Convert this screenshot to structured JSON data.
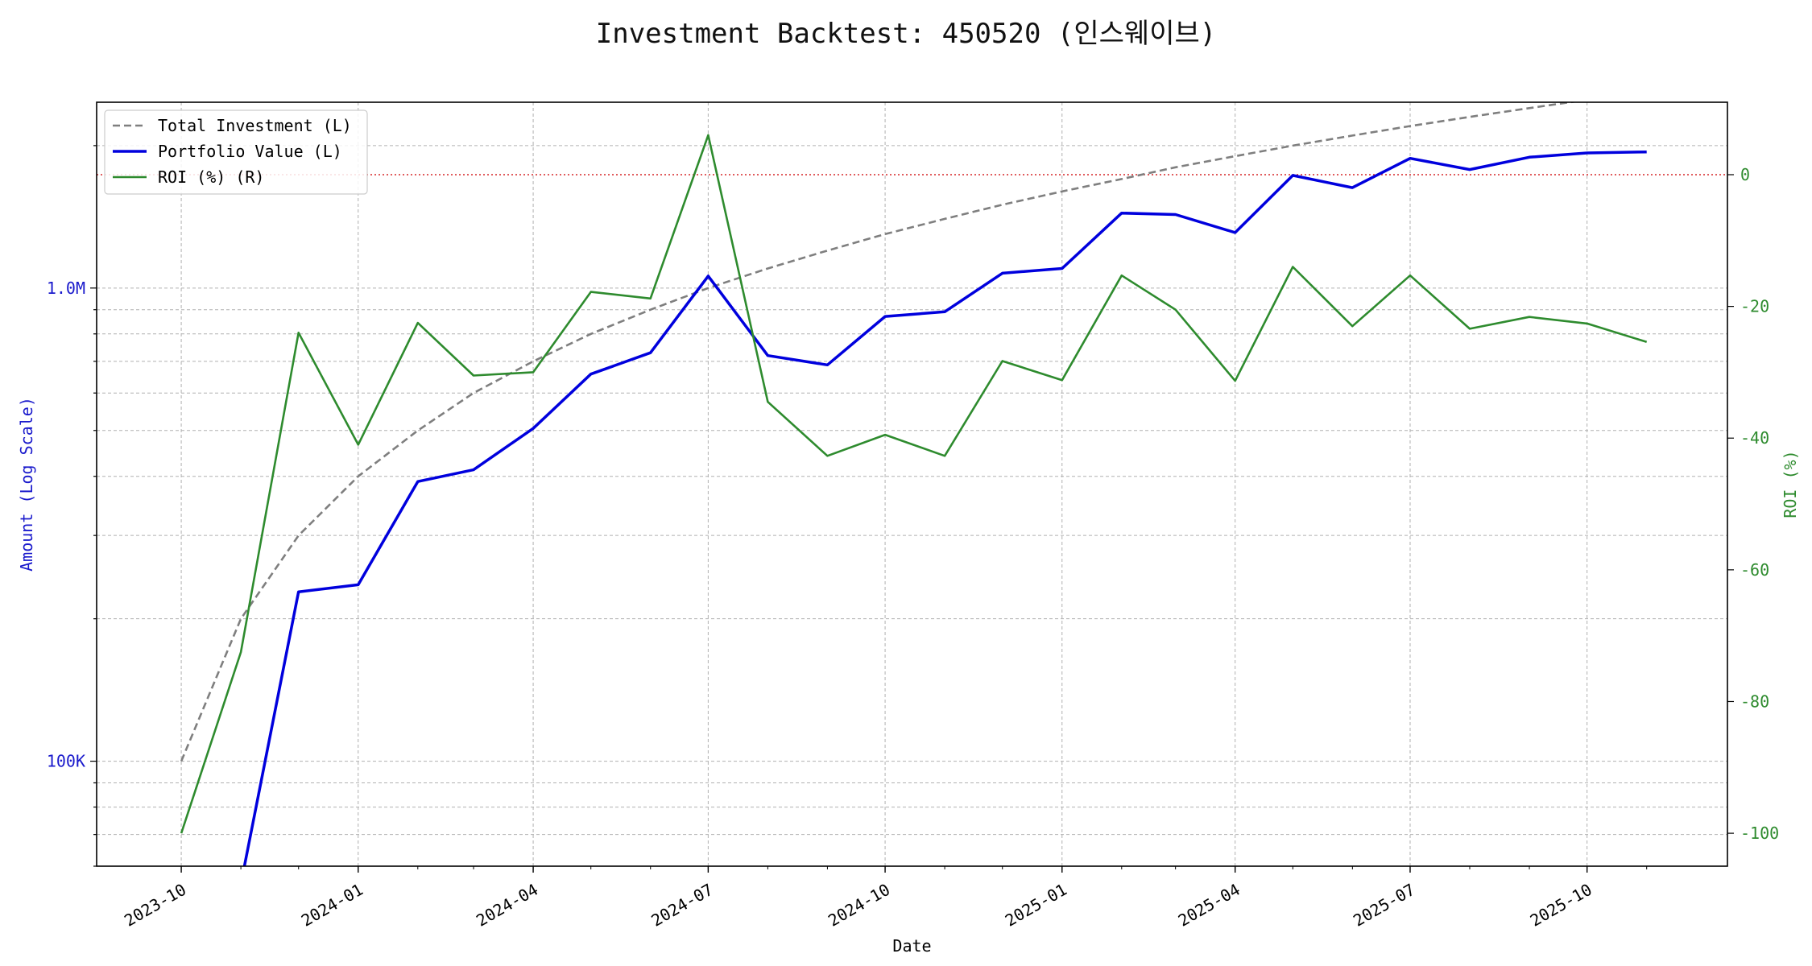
{
  "chart_data": {
    "type": "line",
    "title": "Investment Backtest: 450520 (인스웨이브)",
    "xlabel": "Date",
    "ylabel_left": "Amount (Log Scale)",
    "ylabel_right": "ROI (%)",
    "left_scale": "log",
    "left_ylim": [
      60000,
      2470000
    ],
    "right_ylim": [
      -105,
      11
    ],
    "grid": true,
    "legend_position": "top-left",
    "reference_line": {
      "axis": "right",
      "value": 0,
      "style": "dotted",
      "color": "#d62728"
    },
    "x_ticks": [
      "2023-10",
      "2024-01",
      "2024-04",
      "2024-07",
      "2024-10",
      "2025-01",
      "2025-04",
      "2025-07",
      "2025-10"
    ],
    "left_ticks": [
      {
        "value": 100000,
        "label": "100K"
      },
      {
        "value": 1000000,
        "label": "1.0M"
      }
    ],
    "right_ticks": [
      0,
      -20,
      -40,
      -60,
      -80,
      -100
    ],
    "dates": [
      "2023-10-01",
      "2023-11-01",
      "2023-12-01",
      "2024-01-01",
      "2024-02-01",
      "2024-03-01",
      "2024-04-01",
      "2024-05-01",
      "2024-06-01",
      "2024-07-01",
      "2024-08-01",
      "2024-09-01",
      "2024-10-01",
      "2024-11-01",
      "2024-12-01",
      "2025-01-01",
      "2025-02-01",
      "2025-03-01",
      "2025-04-01",
      "2025-05-01",
      "2025-06-01",
      "2025-07-01",
      "2025-08-01",
      "2025-09-01",
      "2025-10-01",
      "2025-11-01"
    ],
    "series": [
      {
        "name": "Total Investment (L)",
        "axis": "left",
        "color": "#7f7f7f",
        "style": "dashed",
        "values": [
          100000,
          200000,
          300000,
          400000,
          500000,
          600000,
          700000,
          800000,
          900000,
          1000000,
          1100000,
          1200000,
          1300000,
          1400000,
          1500000,
          1600000,
          1700000,
          1800000,
          1900000,
          2000000,
          2100000,
          2200000,
          2300000,
          2400000,
          2500000,
          2600000
        ]
      },
      {
        "name": "Portfolio Value (L)",
        "axis": "left",
        "color": "#0000dd",
        "style": "solid",
        "values": [
          0,
          55000,
          228000,
          236000,
          390000,
          413000,
          505000,
          658000,
          730000,
          1060000,
          720000,
          688000,
          871000,
          891000,
          1075000,
          1100000,
          1440000,
          1430000,
          1310000,
          1730000,
          1630000,
          1880000,
          1780000,
          1890000,
          1930000,
          1940000
        ]
      },
      {
        "name": "ROI (%) (R)",
        "axis": "right",
        "color": "#2e8b2e",
        "style": "solid",
        "values": [
          -100,
          -72.5,
          -24,
          -41,
          -22.5,
          -30.5,
          -30,
          -17.8,
          -18.8,
          6,
          -34.5,
          -42.7,
          -39.5,
          -42.7,
          -28.3,
          -31.2,
          -15.3,
          -20.5,
          -31.3,
          -14,
          -23,
          -15.3,
          -23.4,
          -21.6,
          -22.6,
          -25.4
        ]
      }
    ]
  }
}
